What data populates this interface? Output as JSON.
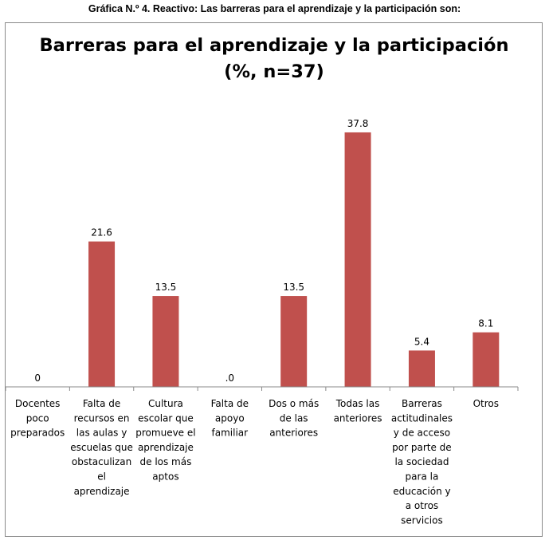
{
  "caption": "Gráfica N.º 4. Reactivo: Las barreras para el aprendizaje y la participación son:",
  "colors": {
    "bar": "#c0504d",
    "axis": "#8a8a8a",
    "frame": "#8a8a8a"
  },
  "chart_data": {
    "type": "bar",
    "title": "Barreras para el aprendizaje y la participación",
    "subtitle": "(%, n=37)",
    "xlabel": "",
    "ylabel": "",
    "ylim": [
      0,
      40
    ],
    "grid": false,
    "categories": [
      "Docentes poco preparados",
      "Falta de recursos en las aulas y escuelas que obstaculizan el aprendizaje",
      "Cultura escolar que promueve el aprendizaje de los más aptos",
      "Falta de apoyo familiar",
      "Dos o más de las anteriores",
      "Todas las anteriores",
      "Barreras actitudinales y de acceso por parte de la sociedad para la educación y a otros servicios",
      "Otros"
    ],
    "category_lines": [
      [
        "Docentes",
        "poco",
        "preparados"
      ],
      [
        "Falta de",
        "recursos en",
        "las aulas y",
        "escuelas que",
        "obstaculizan",
        "el",
        "aprendizaje"
      ],
      [
        "Cultura",
        "escolar que",
        "promueve el",
        "aprendizaje",
        "de los más",
        "aptos"
      ],
      [
        "Falta de",
        "apoyo",
        "familiar"
      ],
      [
        "Dos o más",
        "de las",
        "anteriores"
      ],
      [
        "Todas las",
        "anteriores"
      ],
      [
        "Barreras",
        "actitudinales",
        "y de acceso",
        "por parte de",
        "la sociedad",
        "para la",
        "educación y",
        "a otros",
        "servicios"
      ],
      [
        "Otros"
      ]
    ],
    "values": [
      0,
      21.6,
      13.5,
      0,
      13.5,
      37.8,
      5.4,
      8.1
    ],
    "data_labels": [
      "0",
      "21.6",
      "13.5",
      ".0",
      "13.5",
      "37.8",
      "5.4",
      "8.1"
    ]
  }
}
